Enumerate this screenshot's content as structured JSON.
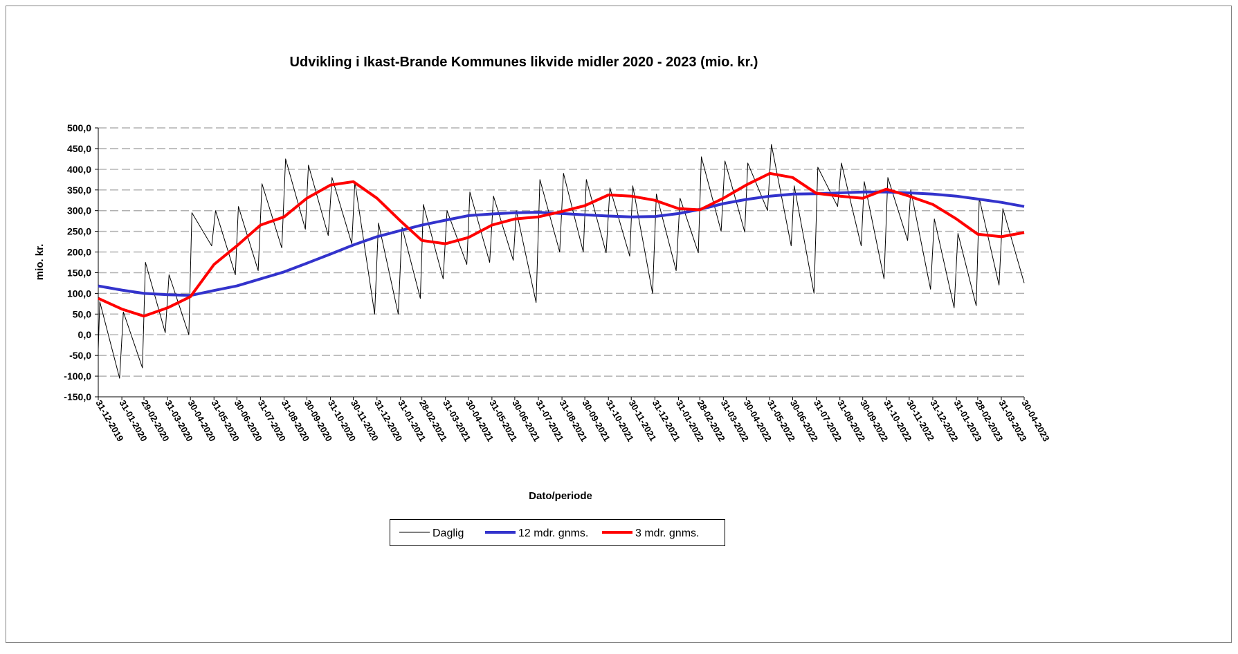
{
  "chart_data": {
    "type": "line",
    "title": "Udvikling i Ikast-Brande Kommunes likvide midler 2020 - 2023 (mio. kr.)",
    "xlabel": "Dato/periode",
    "ylabel": "mio. kr.",
    "x": [
      "31-12-2019",
      "31-01-2020",
      "29-02-2020",
      "31-03-2020",
      "30-04-2020",
      "31-05-2020",
      "30-06-2020",
      "31-07-2020",
      "31-08-2020",
      "30-09-2020",
      "31-10-2020",
      "30-11-2020",
      "31-12-2020",
      "31-01-2021",
      "28-02-2021",
      "31-03-2021",
      "30-04-2021",
      "31-05-2021",
      "30-06-2021",
      "31-07-2021",
      "31-08-2021",
      "30-09-2021",
      "31-10-2021",
      "30-11-2021",
      "31-12-2021",
      "31-01-2022",
      "28-02-2022",
      "31-03-2022",
      "30-04-2022",
      "31-05-2022",
      "30-06-2022",
      "31-07-2022",
      "31-08-2022",
      "30-09-2022",
      "31-10-2022",
      "30-11-2022",
      "31-12-2022",
      "31-01-2023",
      "28-02-2023",
      "31-03-2023",
      "30-04-2023"
    ],
    "xlim": [
      "31-12-2019",
      "30-04-2023"
    ],
    "ylim": [
      -150,
      500
    ],
    "yticks": [
      {
        "value": -150,
        "label": "-150,0"
      },
      {
        "value": -100,
        "label": "-100,0"
      },
      {
        "value": -50,
        "label": "-50,0"
      },
      {
        "value": 0,
        "label": "0,0"
      },
      {
        "value": 50,
        "label": "50,0"
      },
      {
        "value": 100,
        "label": "100,0"
      },
      {
        "value": 150,
        "label": "150,0"
      },
      {
        "value": 200,
        "label": "200,0"
      },
      {
        "value": 250,
        "label": "250,0"
      },
      {
        "value": 300,
        "label": "300,0"
      },
      {
        "value": 350,
        "label": "350,0"
      },
      {
        "value": 400,
        "label": "400,0"
      },
      {
        "value": 450,
        "label": "450,0"
      },
      {
        "value": 500,
        "label": "500,0"
      }
    ],
    "grid": true,
    "legend": "bottom",
    "series": [
      {
        "name": "Daglig",
        "color": "#000000",
        "width": 1,
        "x": [
          "31-12-2019",
          "02-01-2020",
          "28-01-2020",
          "02-02-2020",
          "27-02-2020",
          "02-03-2020",
          "28-03-2020",
          "02-04-2020",
          "28-04-2020",
          "02-05-2020",
          "28-05-2020",
          "02-06-2020",
          "28-06-2020",
          "02-07-2020",
          "28-07-2020",
          "02-08-2020",
          "28-08-2020",
          "02-09-2020",
          "28-09-2020",
          "02-10-2020",
          "28-10-2020",
          "02-11-2020",
          "28-11-2020",
          "02-12-2020",
          "28-12-2020",
          "02-01-2021",
          "28-01-2021",
          "02-02-2021",
          "26-02-2021",
          "02-03-2021",
          "28-03-2021",
          "02-04-2021",
          "28-04-2021",
          "02-05-2021",
          "28-05-2021",
          "02-06-2021",
          "28-06-2021",
          "02-07-2021",
          "28-07-2021",
          "02-08-2021",
          "28-08-2021",
          "02-09-2021",
          "28-09-2021",
          "02-10-2021",
          "28-10-2021",
          "02-11-2021",
          "28-11-2021",
          "02-12-2021",
          "28-12-2021",
          "02-01-2022",
          "28-01-2022",
          "02-02-2022",
          "26-02-2022",
          "02-03-2022",
          "28-03-2022",
          "02-04-2022",
          "28-04-2022",
          "02-05-2022",
          "28-05-2022",
          "02-06-2022",
          "28-06-2022",
          "02-07-2022",
          "28-07-2022",
          "02-08-2022",
          "28-08-2022",
          "02-09-2022",
          "28-09-2022",
          "02-10-2022",
          "28-10-2022",
          "02-11-2022",
          "28-11-2022",
          "02-12-2022",
          "28-12-2022",
          "02-01-2023",
          "28-01-2023",
          "02-02-2023",
          "26-02-2023",
          "02-03-2023",
          "28-03-2023",
          "02-04-2023",
          "30-04-2023"
        ],
        "values": [
          -35,
          80,
          -105,
          55,
          -80,
          175,
          5,
          145,
          0,
          295,
          215,
          300,
          145,
          310,
          155,
          365,
          210,
          425,
          255,
          410,
          240,
          380,
          220,
          370,
          50,
          270,
          50,
          260,
          88,
          315,
          135,
          300,
          170,
          345,
          175,
          335,
          180,
          300,
          78,
          375,
          200,
          390,
          200,
          375,
          198,
          355,
          190,
          360,
          100,
          340,
          155,
          330,
          198,
          430,
          250,
          420,
          248,
          415,
          300,
          460,
          215,
          360,
          100,
          405,
          310,
          415,
          215,
          370,
          135,
          380,
          228,
          350,
          110,
          280,
          65,
          245,
          70,
          330,
          120,
          305,
          125
        ]
      },
      {
        "name": "12 mdr. gnms.",
        "color": "#3333cc",
        "width": 4,
        "values": [
          118,
          108,
          100,
          97,
          95,
          107,
          118,
          135,
          152,
          173,
          195,
          217,
          237,
          252,
          265,
          277,
          288,
          292,
          295,
          296,
          293,
          290,
          287,
          285,
          286,
          293,
          303,
          317,
          327,
          335,
          340,
          341,
          343,
          345,
          345,
          343,
          340,
          335,
          328,
          320,
          310
        ]
      },
      {
        "name": "3 mdr. gnms.",
        "color": "#ff0000",
        "width": 4,
        "values": [
          88,
          62,
          45,
          65,
          92,
          170,
          215,
          265,
          285,
          330,
          362,
          370,
          330,
          275,
          228,
          220,
          235,
          265,
          280,
          285,
          298,
          312,
          338,
          335,
          325,
          305,
          302,
          330,
          362,
          390,
          380,
          342,
          335,
          330,
          352,
          335,
          315,
          280,
          243,
          237,
          247
        ]
      }
    ]
  }
}
